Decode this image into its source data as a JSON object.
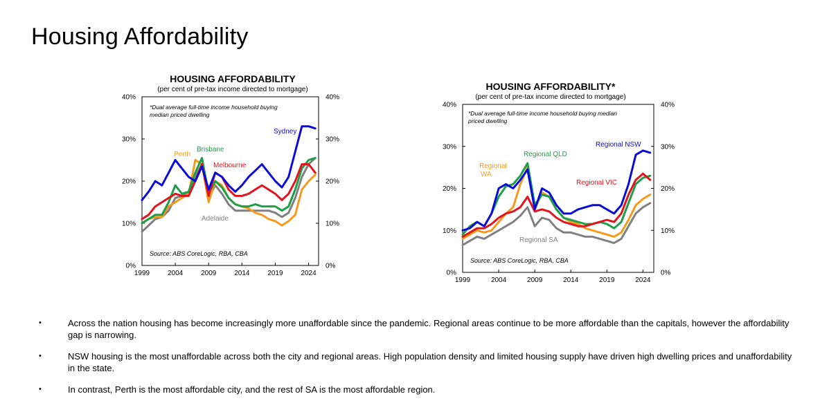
{
  "page": {
    "title": "Housing Affordability"
  },
  "chart_data": [
    {
      "type": "line",
      "title": "HOUSING AFFORDABILITY",
      "subtitle": "(per cent of pre-tax income directed to mortgage)",
      "note": [
        "*Dual average full-time income household buying",
        "median priced dwelling"
      ],
      "source": "Source: ABS CoreLogic, RBA, CBA",
      "xlim": [
        1999,
        2025.5
      ],
      "ylim": [
        0,
        40
      ],
      "x_ticks": [
        "1999",
        "2004",
        "2009",
        "2014",
        "2019",
        "2024"
      ],
      "y_ticks_left": [
        "0%",
        "10%",
        "20%",
        "30%",
        "40%"
      ],
      "y_ticks_right": [
        "0%",
        "10%",
        "20%",
        "30%",
        "40%"
      ],
      "series": [
        {
          "name": "Adelaide",
          "color": "#808080",
          "x": [
            1999,
            2000,
            2001,
            2002,
            2003,
            2004,
            2005,
            2006,
            2007,
            2008,
            2009,
            2010,
            2011,
            2012,
            2013,
            2014,
            2015,
            2016,
            2017,
            2018,
            2019,
            2020,
            2021,
            2022,
            2023,
            2024,
            2025
          ],
          "values": [
            8,
            9.5,
            11,
            11.5,
            13,
            16,
            16.5,
            17,
            21,
            24,
            16,
            19,
            17,
            14.5,
            13,
            13,
            13,
            13,
            13,
            13,
            12.5,
            11.5,
            12.5,
            16,
            21,
            24,
            25.5
          ]
        },
        {
          "name": "Perth",
          "color": "#F59A1C",
          "x": [
            1999,
            2000,
            2001,
            2002,
            2003,
            2004,
            2005,
            2006,
            2007,
            2008,
            2009,
            2010,
            2011,
            2012,
            2013,
            2014,
            2015,
            2016,
            2017,
            2018,
            2019,
            2020,
            2021,
            2022,
            2023,
            2024,
            2025
          ],
          "values": [
            10,
            11,
            11.5,
            11.5,
            14,
            15,
            16,
            17,
            25,
            24,
            15,
            20,
            19,
            16,
            14.5,
            14,
            13.5,
            12.5,
            12,
            11,
            10.5,
            9.5,
            10.5,
            12,
            18,
            20,
            21.5
          ]
        },
        {
          "name": "Brisbane",
          "color": "#1E9E48",
          "x": [
            1999,
            2000,
            2001,
            2002,
            2003,
            2004,
            2005,
            2006,
            2007,
            2008,
            2009,
            2010,
            2011,
            2012,
            2013,
            2014,
            2015,
            2016,
            2017,
            2018,
            2019,
            2020,
            2021,
            2022,
            2023,
            2024,
            2025
          ],
          "values": [
            10,
            11,
            12,
            12,
            15,
            19,
            17,
            17.5,
            22,
            25.5,
            17,
            20,
            18.5,
            16,
            14.5,
            14,
            14,
            14.5,
            14,
            14,
            14,
            13,
            14,
            18,
            23,
            25,
            25.5
          ]
        },
        {
          "name": "Melbourne",
          "color": "#E2141D",
          "x": [
            1999,
            2000,
            2001,
            2002,
            2003,
            2004,
            2005,
            2006,
            2007,
            2008,
            2009,
            2010,
            2011,
            2012,
            2013,
            2014,
            2015,
            2016,
            2017,
            2018,
            2019,
            2020,
            2021,
            2022,
            2023,
            2024,
            2025
          ],
          "values": [
            11,
            12,
            14,
            15,
            16,
            17,
            16.5,
            16.5,
            20,
            24,
            16.5,
            22,
            21,
            18,
            16.5,
            16.5,
            17,
            18,
            19,
            18,
            17,
            15.5,
            17,
            20,
            24,
            24,
            22
          ]
        },
        {
          "name": "Sydney",
          "color": "#0A0AD6",
          "x": [
            1999,
            2000,
            2001,
            2002,
            2003,
            2004,
            2005,
            2006,
            2007,
            2008,
            2009,
            2010,
            2011,
            2012,
            2013,
            2014,
            2015,
            2016,
            2017,
            2018,
            2019,
            2020,
            2021,
            2022,
            2023,
            2024,
            2025
          ],
          "values": [
            15.5,
            17.5,
            20,
            19,
            22,
            25,
            23,
            21,
            20,
            23.5,
            18,
            22,
            21,
            19,
            17.5,
            19,
            21,
            22.5,
            24,
            22,
            20,
            18.5,
            21,
            27,
            33,
            33,
            32.5
          ]
        }
      ]
    },
    {
      "type": "line",
      "title": "HOUSING AFFORDABILITY*",
      "subtitle": "(per cent of pre-tax income directed to mortgage)",
      "note": [
        "*Dual average full-time income household buying median",
        "priced dwelling"
      ],
      "source": "Source: ABS CoreLogic, RBA, CBA",
      "xlim": [
        1999,
        2025.5
      ],
      "ylim": [
        0,
        40
      ],
      "x_ticks": [
        "1999",
        "2004",
        "2009",
        "2014",
        "2019",
        "2024"
      ],
      "y_ticks_left": [
        "0%",
        "10%",
        "20%",
        "30%",
        "40%"
      ],
      "y_ticks_right": [
        "0%",
        "10%",
        "20%",
        "30%",
        "40%"
      ],
      "series": [
        {
          "name": "Regional SA",
          "color": "#808080",
          "x": [
            1999,
            2000,
            2001,
            2002,
            2003,
            2004,
            2005,
            2006,
            2007,
            2008,
            2009,
            2010,
            2011,
            2012,
            2013,
            2014,
            2015,
            2016,
            2017,
            2018,
            2019,
            2020,
            2021,
            2022,
            2023,
            2024,
            2025
          ],
          "values": [
            6.5,
            7.5,
            8.5,
            8,
            9,
            10,
            11,
            12,
            13.5,
            15.5,
            11,
            13,
            12.5,
            10.5,
            9.5,
            9.5,
            9,
            8.5,
            8.5,
            8,
            7.5,
            7,
            8,
            11,
            14,
            15.5,
            16.5
          ]
        },
        {
          "name": "Regional WA",
          "color": "#F59A1C",
          "x": [
            1999,
            2000,
            2001,
            2002,
            2003,
            2004,
            2005,
            2006,
            2007,
            2008,
            2009,
            2010,
            2011,
            2012,
            2013,
            2014,
            2015,
            2016,
            2017,
            2018,
            2019,
            2020,
            2021,
            2022,
            2023,
            2024,
            2025
          ],
          "values": [
            8,
            9,
            10,
            9.5,
            10,
            12,
            14,
            15.5,
            21,
            25,
            15,
            19,
            18,
            15,
            13,
            12,
            11.5,
            10.5,
            10,
            9.5,
            9,
            8.5,
            9.5,
            12.5,
            16,
            17.5,
            18.5
          ]
        },
        {
          "name": "Regional QLD",
          "color": "#1E9E48",
          "x": [
            1999,
            2000,
            2001,
            2002,
            2003,
            2004,
            2005,
            2006,
            2007,
            2008,
            2009,
            2010,
            2011,
            2012,
            2013,
            2014,
            2015,
            2016,
            2017,
            2018,
            2019,
            2020,
            2021,
            2022,
            2023,
            2024,
            2025
          ],
          "values": [
            9,
            11,
            12,
            11,
            14,
            18,
            20.5,
            21,
            23,
            26,
            16,
            18.5,
            18,
            15,
            13,
            12.5,
            12,
            11.5,
            11.5,
            12,
            11.5,
            10.5,
            12,
            16.5,
            21,
            22.5,
            23
          ]
        },
        {
          "name": "Regional VIC",
          "color": "#E2141D",
          "x": [
            1999,
            2000,
            2001,
            2002,
            2003,
            2004,
            2005,
            2006,
            2007,
            2008,
            2009,
            2010,
            2011,
            2012,
            2013,
            2014,
            2015,
            2016,
            2017,
            2018,
            2019,
            2020,
            2021,
            2022,
            2023,
            2024,
            2025
          ],
          "values": [
            8.5,
            9.5,
            10.5,
            10.5,
            11.5,
            13,
            14,
            14.5,
            15.5,
            18,
            14.5,
            15,
            14.5,
            13,
            12,
            11.5,
            11,
            11,
            11.5,
            12,
            12.5,
            12,
            14,
            18.5,
            22,
            23.5,
            22
          ]
        },
        {
          "name": "Regional NSW",
          "color": "#0A0AD6",
          "x": [
            1999,
            2000,
            2001,
            2002,
            2003,
            2004,
            2005,
            2006,
            2007,
            2008,
            2009,
            2010,
            2011,
            2012,
            2013,
            2014,
            2015,
            2016,
            2017,
            2018,
            2019,
            2020,
            2021,
            2022,
            2023,
            2024,
            2025
          ],
          "values": [
            10,
            10.5,
            12,
            11,
            14,
            20,
            21,
            20,
            22,
            24.5,
            15,
            20,
            19,
            16,
            14,
            14,
            15,
            15.5,
            16,
            16,
            15,
            14,
            16,
            21,
            28,
            29,
            28.5
          ]
        }
      ]
    }
  ],
  "bullets": [
    "Across the nation housing has become increasingly more unaffordable since the pandemic. Regional areas continue to be more affordable than the capitals, however the affordability gap is narrowing.",
    "NSW housing is the most unaffordable across both the city and regional areas. High population density and limited housing supply have driven high dwelling prices and unaffordability in the state.",
    "In contrast, Perth is the most affordable city, and the rest of SA is the most affordable region."
  ]
}
